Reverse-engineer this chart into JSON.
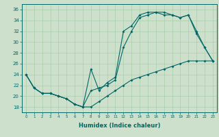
{
  "title": "",
  "xlabel": "Humidex (Indice chaleur)",
  "ylabel": "",
  "background_color": "#cce0cc",
  "grid_color": "#aaccaa",
  "line_color": "#006666",
  "xlim": [
    -0.5,
    23.5
  ],
  "ylim": [
    17,
    37
  ],
  "yticks": [
    18,
    20,
    22,
    24,
    26,
    28,
    30,
    32,
    34,
    36
  ],
  "xticks": [
    0,
    1,
    2,
    3,
    4,
    5,
    6,
    7,
    8,
    9,
    10,
    11,
    12,
    13,
    14,
    15,
    16,
    17,
    18,
    19,
    20,
    21,
    22,
    23
  ],
  "line1_x": [
    0,
    1,
    2,
    3,
    4,
    5,
    6,
    7,
    8,
    9,
    10,
    11,
    12,
    13,
    14,
    15,
    16,
    17,
    18,
    19,
    20,
    21,
    22,
    23
  ],
  "line1_y": [
    24,
    21.5,
    20.5,
    20.5,
    20,
    19.5,
    18.5,
    18,
    25,
    21,
    22.5,
    23.5,
    32,
    33,
    35,
    35.5,
    35.5,
    35.5,
    35,
    34.5,
    35,
    32,
    29,
    26.5
  ],
  "line2_x": [
    0,
    1,
    2,
    3,
    4,
    5,
    6,
    7,
    8,
    9,
    10,
    11,
    12,
    13,
    14,
    15,
    16,
    17,
    18,
    19,
    20,
    21,
    22,
    23
  ],
  "line2_y": [
    24,
    21.5,
    20.5,
    20.5,
    20,
    19.5,
    18.5,
    18,
    21,
    21.5,
    22,
    23,
    29,
    32,
    34.5,
    35,
    35.5,
    35,
    35,
    34.5,
    35,
    31.5,
    29,
    26.5
  ],
  "line3_x": [
    0,
    1,
    2,
    3,
    4,
    5,
    6,
    7,
    8,
    9,
    10,
    11,
    12,
    13,
    14,
    15,
    16,
    17,
    18,
    19,
    20,
    21,
    22,
    23
  ],
  "line3_y": [
    24,
    21.5,
    20.5,
    20.5,
    20,
    19.5,
    18.5,
    18,
    18,
    19,
    20,
    21,
    22,
    23,
    23.5,
    24,
    24.5,
    25,
    25.5,
    26,
    26.5,
    26.5,
    26.5,
    26.5
  ],
  "xlabel_fontsize": 6,
  "tick_fontsize": 4,
  "marker_size": 2
}
